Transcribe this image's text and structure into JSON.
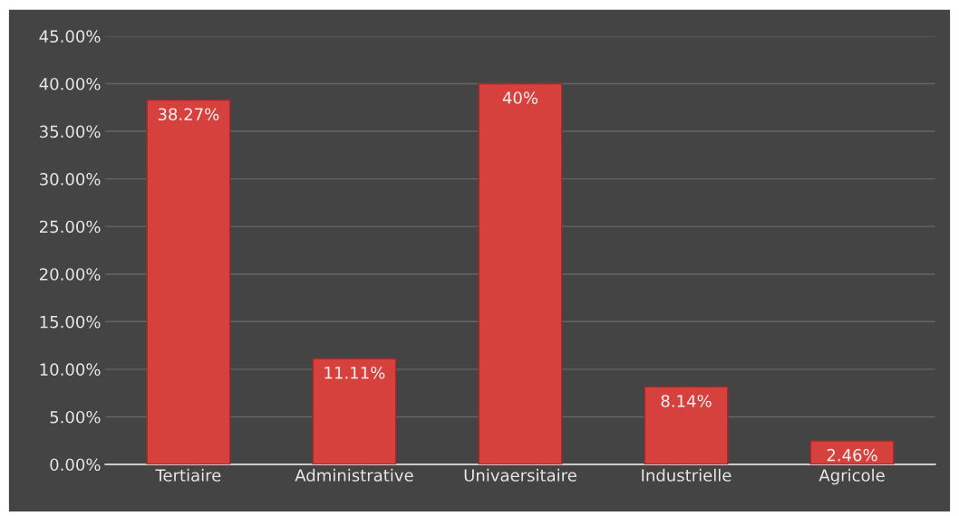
{
  "chart_data": {
    "type": "bar",
    "categories": [
      "Tertiaire",
      "Administrative",
      "Univaersitaire",
      "Industrielle",
      "Agricole"
    ],
    "values": [
      38.27,
      11.11,
      40,
      8.14,
      2.46
    ],
    "value_labels": [
      "38.27%",
      "11.11%",
      "40%",
      "8.14%",
      "2.46%"
    ],
    "color": "#d6403d",
    "ylim": [
      0,
      45
    ],
    "yticks": [
      {
        "value": 0,
        "label": "0.00%"
      },
      {
        "value": 5,
        "label": "5.00%"
      },
      {
        "value": 10,
        "label": "10.00%"
      },
      {
        "value": 15,
        "label": "15.00%"
      },
      {
        "value": 20,
        "label": "20.00%"
      },
      {
        "value": 25,
        "label": "25.00%"
      },
      {
        "value": 30,
        "label": "30.00%"
      },
      {
        "value": 35,
        "label": "35.00%"
      },
      {
        "value": 40,
        "label": "40.00%"
      },
      {
        "value": 45,
        "label": "45.00%"
      }
    ],
    "grid": "y"
  }
}
